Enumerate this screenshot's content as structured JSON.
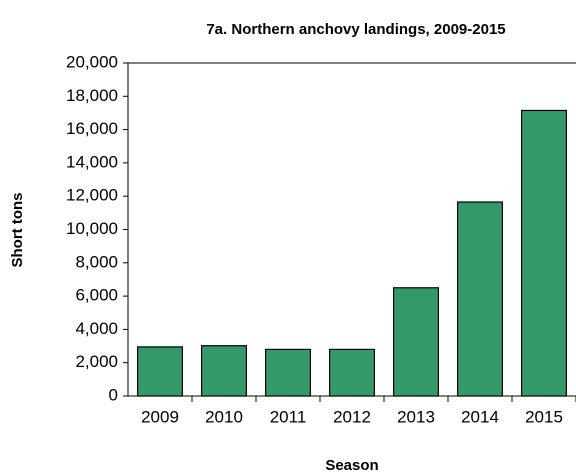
{
  "chart_data": {
    "type": "bar",
    "title": "7a. Northern anchovy  landings,  2009-2015",
    "x_label": "Season",
    "y_label": "Short  tons",
    "categories": [
      "2009",
      "2010",
      "2011",
      "2012",
      "2013",
      "2014",
      "2015"
    ],
    "values": [
      2950,
      3020,
      2800,
      2800,
      6500,
      11650,
      17150
    ],
    "color": "#339966",
    "ylim": [
      0,
      20000
    ],
    "yticks": [
      0,
      {
        "value": 2000,
        "label": "2,000"
      },
      {
        "value": 4000,
        "label": "4,000"
      },
      {
        "value": 6000,
        "label": "6,000"
      },
      {
        "value": 8000,
        "label": "8,000"
      },
      {
        "value": 10000,
        "label": "10,000"
      },
      {
        "value": 12000,
        "label": "12,000"
      },
      {
        "value": 14000,
        "label": "14,000"
      },
      {
        "value": 16000,
        "label": "16,000"
      },
      {
        "value": 18000,
        "label": "18,000"
      },
      {
        "value": 20000,
        "label": "20,000"
      }
    ],
    "grid": false
  }
}
